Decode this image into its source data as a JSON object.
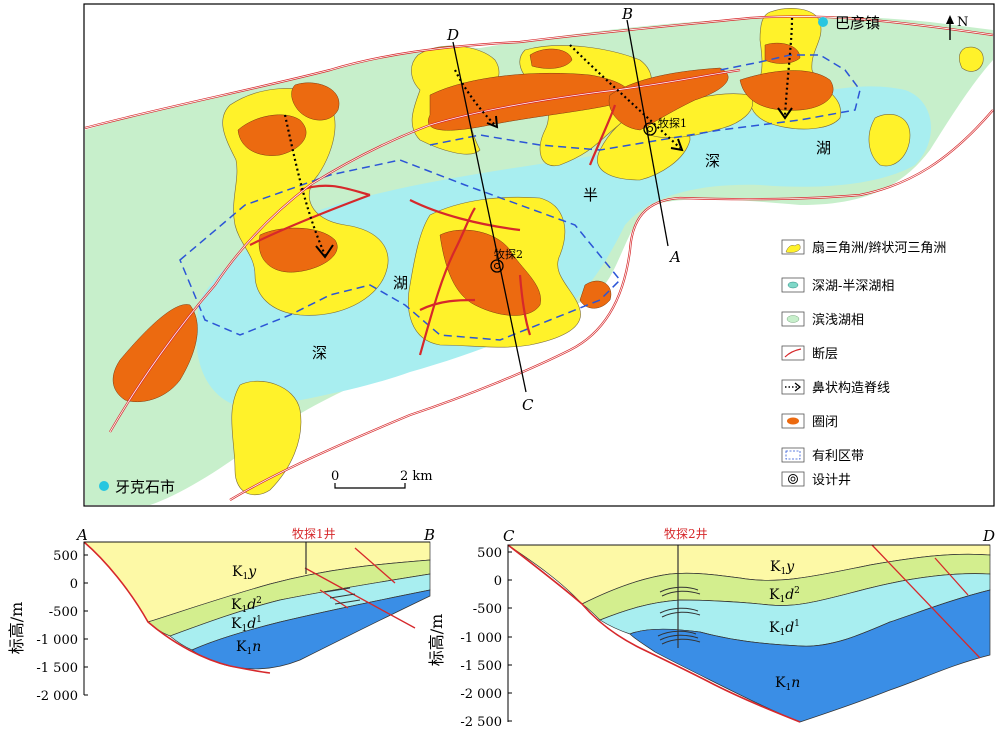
{
  "map": {
    "north_label": "N",
    "town_bayan": "巴彦镇",
    "city_yakeshi": "牙克石市",
    "lake_words": [
      "半",
      "深",
      "湖",
      "湖",
      "深"
    ],
    "profile_letters": {
      "A": "A",
      "B": "B",
      "C": "C",
      "D": "D"
    },
    "wells": {
      "w1": "牧探1",
      "w2": "牧探2"
    },
    "scale": {
      "zero": "0",
      "value": "2 km"
    },
    "legend": [
      {
        "key": "fan",
        "label": "扇三角洲/辫状河三角洲"
      },
      {
        "key": "deep",
        "label": "深湖-半深湖相"
      },
      {
        "key": "shallow",
        "label": "滨浅湖相"
      },
      {
        "key": "fault",
        "label": "断层"
      },
      {
        "key": "ridge",
        "label": "鼻状构造脊线"
      },
      {
        "key": "trap",
        "label": "圈闭"
      },
      {
        "key": "zone",
        "label": "有利区带"
      },
      {
        "key": "well",
        "label": "设计井"
      }
    ],
    "colors": {
      "fan": "#fff22a",
      "deep": "#a8eef0",
      "shallow": "#c7efcb",
      "trap": "#ec6a10",
      "fault": "#d6282b",
      "zone": "#2b55d6"
    }
  },
  "sections": {
    "left": {
      "start_letter": "A",
      "end_letter": "B",
      "well": "牧探1井",
      "ylabel": "标高/m",
      "ticks": [
        "500",
        "0",
        "-500",
        "-1 000",
        "-1 500",
        "-2 000"
      ],
      "units": [
        {
          "base": "K",
          "sub": "1",
          "letter": "y",
          "sup": ""
        },
        {
          "base": "K",
          "sub": "1",
          "letter": "d",
          "sup": "2"
        },
        {
          "base": "K",
          "sub": "1",
          "letter": "d",
          "sup": "1"
        },
        {
          "base": "K",
          "sub": "1",
          "letter": "n",
          "sup": ""
        }
      ]
    },
    "right": {
      "start_letter": "C",
      "end_letter": "D",
      "well": "牧探2井",
      "ylabel": "标高/m",
      "ticks": [
        "500",
        "0",
        "-500",
        "-1 000",
        "-1 500",
        "-2 000",
        "-2 500"
      ],
      "units": [
        {
          "base": "K",
          "sub": "1",
          "letter": "y",
          "sup": ""
        },
        {
          "base": "K",
          "sub": "1",
          "letter": "d",
          "sup": "2"
        },
        {
          "base": "K",
          "sub": "1",
          "letter": "d",
          "sup": "1"
        },
        {
          "base": "K",
          "sub": "1",
          "letter": "n",
          "sup": ""
        }
      ]
    }
  }
}
